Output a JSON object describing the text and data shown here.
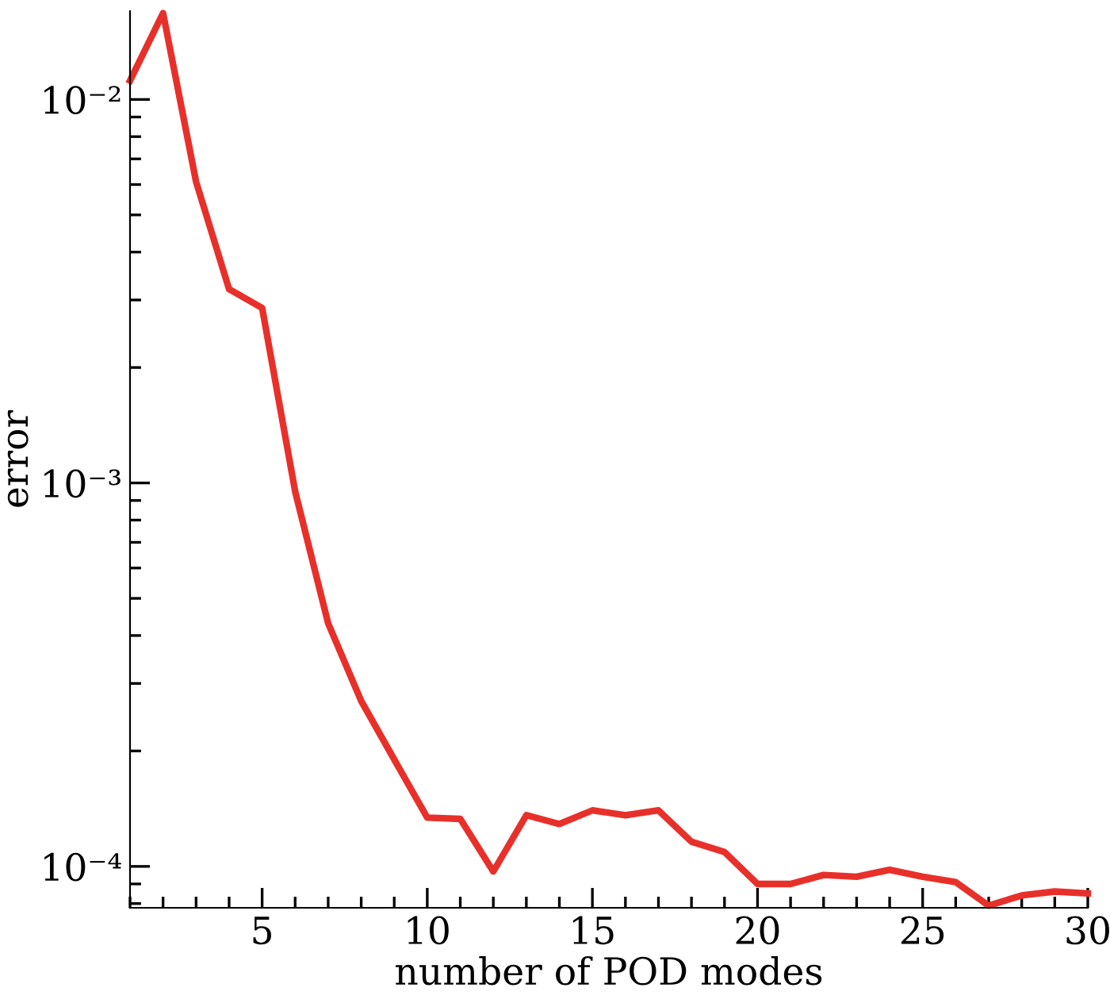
{
  "chart_data": {
    "type": "line",
    "xlabel": "number of POD modes",
    "ylabel": "error",
    "x": [
      1,
      2,
      3,
      4,
      5,
      6,
      7,
      8,
      9,
      10,
      11,
      12,
      13,
      14,
      15,
      16,
      17,
      18,
      19,
      20,
      21,
      22,
      23,
      24,
      25,
      26,
      27,
      28,
      29,
      30
    ],
    "series": [
      {
        "color": "#e8302a",
        "values": [
          0.0112,
          0.0168,
          0.0061,
          0.0032,
          0.00286,
          0.00095,
          0.00043,
          0.00027,
          0.00019,
          0.000134,
          0.000133,
          9.7e-05,
          0.000136,
          0.000129,
          0.00014,
          0.000136,
          0.00014,
          0.000116,
          0.000109,
          9e-05,
          9e-05,
          9.5e-05,
          9.4e-05,
          9.8e-05,
          9.4e-05,
          9.1e-05,
          7.9e-05,
          8.4e-05,
          8.6e-05,
          8.5e-05
        ]
      }
    ],
    "log": "y",
    "xlim": [
      1,
      30
    ],
    "ylim": [
      7.8e-05,
      0.017
    ],
    "xticks": [
      5,
      10,
      15,
      20,
      25,
      30
    ],
    "yticks": [
      {
        "value": 0.0001,
        "label": "10⁻⁴"
      },
      {
        "value": 0.001,
        "label": "10⁻³"
      },
      {
        "value": 0.01,
        "label": "10⁻²"
      }
    ],
    "grid": false,
    "legend": false,
    "marker": "none",
    "line_style": "solid"
  }
}
